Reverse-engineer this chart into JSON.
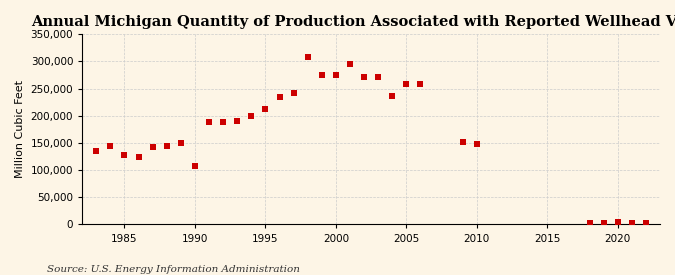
{
  "title": "Annual Michigan Quantity of Production Associated with Reported Wellhead Value",
  "ylabel": "Million Cubic Feet",
  "source": "Source: U.S. Energy Information Administration",
  "background_color": "#fdf5e6",
  "years": [
    1983,
    1984,
    1985,
    1986,
    1987,
    1988,
    1989,
    1990,
    1991,
    1992,
    1993,
    1994,
    1995,
    1996,
    1997,
    1998,
    1999,
    2000,
    2001,
    2002,
    2003,
    2004,
    2005,
    2006,
    2009,
    2010,
    2018,
    2019,
    2020,
    2021,
    2022
  ],
  "values": [
    135000,
    145000,
    128000,
    125000,
    143000,
    145000,
    150000,
    107000,
    188000,
    188000,
    190000,
    200000,
    213000,
    235000,
    242000,
    308000,
    275000,
    275000,
    295000,
    272000,
    272000,
    237000,
    258000,
    258000,
    152000,
    148000,
    3000,
    3000,
    5000,
    3000,
    3000
  ],
  "marker_color": "#cc0000",
  "marker": "s",
  "marker_size": 16,
  "xlim": [
    1982,
    2023
  ],
  "ylim": [
    0,
    350000
  ],
  "yticks": [
    0,
    50000,
    100000,
    150000,
    200000,
    250000,
    300000,
    350000
  ],
  "xticks": [
    1985,
    1990,
    1995,
    2000,
    2005,
    2010,
    2015,
    2020
  ],
  "grid_color": "#cccccc",
  "title_fontsize": 10.5,
  "ylabel_fontsize": 8,
  "source_fontsize": 7.5
}
